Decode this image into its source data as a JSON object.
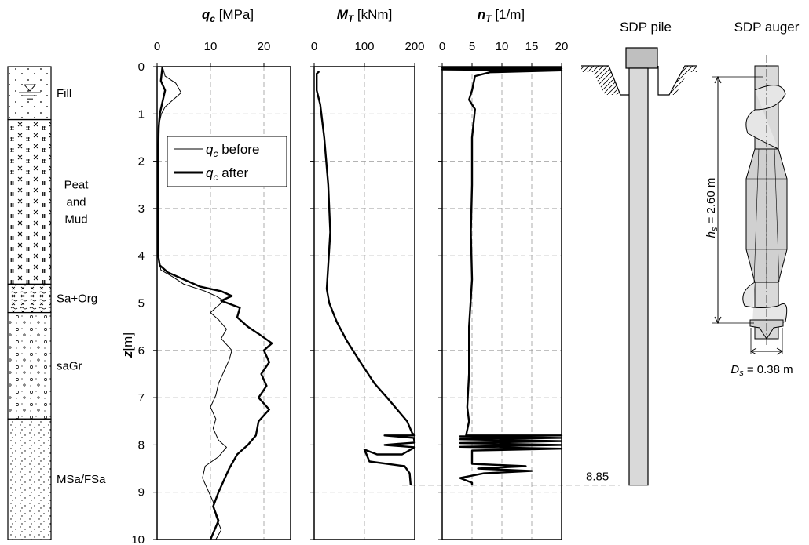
{
  "depth_axis": {
    "label_var": "z",
    "label_unit": "[m]",
    "range": [
      0,
      10
    ],
    "ticks": [
      "0",
      "1",
      "2",
      "3",
      "4",
      "5",
      "6",
      "7",
      "8",
      "9",
      "10"
    ]
  },
  "soil_profile": [
    {
      "name": "Fill",
      "top": 0,
      "bottom": 1.12,
      "pattern": "fill"
    },
    {
      "name": "Peat and Mud",
      "lines": [
        "Peat",
        "and",
        "Mud"
      ],
      "top": 1.12,
      "bottom": 4.6,
      "pattern": "peat"
    },
    {
      "name": "Sa+Org",
      "top": 4.6,
      "bottom": 5.2,
      "pattern": "saorg"
    },
    {
      "name": "saGr",
      "top": 5.2,
      "bottom": 7.45,
      "pattern": "gravel"
    },
    {
      "name": "MSa/FSa",
      "top": 7.45,
      "bottom": 10,
      "pattern": "sand"
    }
  ],
  "headers": {
    "qc": {
      "var": "q",
      "sub": "c",
      "unit": " [MPa]"
    },
    "mt": {
      "var": "M",
      "sub": "T",
      "unit": " [kNm]"
    },
    "nt": {
      "var": "n",
      "sub": "T",
      "unit": " [1/m]"
    },
    "pile": "SDP pile",
    "auger": "SDP auger"
  },
  "pile_annotation": {
    "depth_label": "8.85",
    "depth": 8.85
  },
  "auger_annotation": {
    "hs_var": "h",
    "hs_sub": "s",
    "hs_value": " = 2.60 m",
    "ds_var": "D",
    "ds_sub": "s",
    "ds_value": " = 0.38 m"
  },
  "colors": {
    "line": "#000000",
    "grid": "#9a9a9a",
    "pile_fill": "#d9d9d9",
    "cap_fill": "#bfbfbf"
  },
  "chart_data": [
    {
      "type": "line",
      "id": "qc",
      "title": "q_c [MPa]",
      "xlabel": "q_c [MPa]",
      "ylabel": "z [m]",
      "xlim": [
        0,
        25
      ],
      "ylim": [
        0,
        10
      ],
      "y_inverted": true,
      "x_ticks": [
        "0",
        "10",
        "20"
      ],
      "grid": true,
      "legend_position": "upper-middle",
      "series": [
        {
          "name": "q_c before",
          "style": "thin",
          "points": [
            [
              1.0,
              0.0
            ],
            [
              1.5,
              0.2
            ],
            [
              3.5,
              0.35
            ],
            [
              4.5,
              0.55
            ],
            [
              3.0,
              0.7
            ],
            [
              1.5,
              0.85
            ],
            [
              0.8,
              1.0
            ],
            [
              0.4,
              1.2
            ],
            [
              0.3,
              2.0
            ],
            [
              0.3,
              3.0
            ],
            [
              0.3,
              4.0
            ],
            [
              0.7,
              4.3
            ],
            [
              3.0,
              4.45
            ],
            [
              5.0,
              4.6
            ],
            [
              9.0,
              4.75
            ],
            [
              11.0,
              4.85
            ],
            [
              12.5,
              4.95
            ],
            [
              11.0,
              5.1
            ],
            [
              10.0,
              5.2
            ],
            [
              11.5,
              5.35
            ],
            [
              13.0,
              5.55
            ],
            [
              12.0,
              5.75
            ],
            [
              14.0,
              6.0
            ],
            [
              13.5,
              6.2
            ],
            [
              12.5,
              6.45
            ],
            [
              11.5,
              6.7
            ],
            [
              11.0,
              6.95
            ],
            [
              10.0,
              7.2
            ],
            [
              11.0,
              7.45
            ],
            [
              10.5,
              7.65
            ],
            [
              11.5,
              7.9
            ],
            [
              13.0,
              8.05
            ],
            [
              11.5,
              8.25
            ],
            [
              9.0,
              8.45
            ],
            [
              8.5,
              8.7
            ],
            [
              9.5,
              8.95
            ],
            [
              10.5,
              9.2
            ],
            [
              11.0,
              9.5
            ],
            [
              12.0,
              9.8
            ],
            [
              11.0,
              10.0
            ]
          ]
        },
        {
          "name": "q_c after",
          "style": "thick",
          "points": [
            [
              1.0,
              0.0
            ],
            [
              0.7,
              0.3
            ],
            [
              1.5,
              0.5
            ],
            [
              1.0,
              0.75
            ],
            [
              0.5,
              1.0
            ],
            [
              0.3,
              1.3
            ],
            [
              0.2,
              2.0
            ],
            [
              0.2,
              3.0
            ],
            [
              0.2,
              4.0
            ],
            [
              0.5,
              4.2
            ],
            [
              2.0,
              4.35
            ],
            [
              5.0,
              4.5
            ],
            [
              8.0,
              4.65
            ],
            [
              12.0,
              4.75
            ],
            [
              14.0,
              4.85
            ],
            [
              12.0,
              4.95
            ],
            [
              15.5,
              5.1
            ],
            [
              15.0,
              5.3
            ],
            [
              17.0,
              5.5
            ],
            [
              19.0,
              5.65
            ],
            [
              21.5,
              5.85
            ],
            [
              20.0,
              6.0
            ],
            [
              21.0,
              6.25
            ],
            [
              19.5,
              6.5
            ],
            [
              20.5,
              6.75
            ],
            [
              19.0,
              7.0
            ],
            [
              21.0,
              7.25
            ],
            [
              19.0,
              7.5
            ],
            [
              18.5,
              7.8
            ],
            [
              17.0,
              8.0
            ],
            [
              15.0,
              8.2
            ],
            [
              13.5,
              8.5
            ],
            [
              12.5,
              8.75
            ],
            [
              11.5,
              9.0
            ],
            [
              10.5,
              9.3
            ],
            [
              11.5,
              9.6
            ],
            [
              10.0,
              10.0
            ]
          ]
        }
      ]
    },
    {
      "type": "line",
      "id": "mt",
      "title": "M_T [kNm]",
      "xlabel": "M_T [kNm]",
      "xlim": [
        0,
        200
      ],
      "ylim": [
        0,
        10
      ],
      "y_inverted": true,
      "x_ticks": [
        "0",
        "100",
        "200"
      ],
      "grid": true,
      "series": [
        {
          "name": "M_T",
          "style": "thick",
          "points": [
            [
              10,
              0.1
            ],
            [
              5,
              0.15
            ],
            [
              5,
              0.5
            ],
            [
              12,
              0.8
            ],
            [
              20,
              1.5
            ],
            [
              28,
              2.5
            ],
            [
              32,
              3.5
            ],
            [
              28,
              4.2
            ],
            [
              25,
              4.7
            ],
            [
              30,
              5.0
            ],
            [
              45,
              5.4
            ],
            [
              65,
              5.8
            ],
            [
              95,
              6.3
            ],
            [
              120,
              6.7
            ],
            [
              145,
              7.0
            ],
            [
              165,
              7.25
            ],
            [
              185,
              7.5
            ],
            [
              195,
              7.75
            ],
            [
              200,
              7.8
            ],
            [
              140,
              7.8
            ],
            [
              198,
              7.85
            ],
            [
              200,
              7.95
            ],
            [
              140,
              8.0
            ],
            [
              200,
              8.05
            ],
            [
              175,
              8.2
            ],
            [
              125,
              8.2
            ],
            [
              100,
              8.1
            ],
            [
              110,
              8.35
            ],
            [
              180,
              8.45
            ],
            [
              190,
              8.6
            ],
            [
              192,
              8.85
            ]
          ]
        }
      ]
    },
    {
      "type": "line",
      "id": "nt",
      "title": "n_T [1/m]",
      "xlabel": "n_T [1/m]",
      "xlim": [
        0,
        20
      ],
      "ylim": [
        0,
        10
      ],
      "y_inverted": true,
      "x_ticks": [
        "0",
        "5",
        "10",
        "15",
        "20"
      ],
      "grid": true,
      "series": [
        {
          "name": "n_T",
          "style": "thick",
          "points": [
            [
              20,
              0.02
            ],
            [
              0,
              0.02
            ],
            [
              20,
              0.04
            ],
            [
              0,
              0.06
            ],
            [
              20,
              0.08
            ],
            [
              8,
              0.12
            ],
            [
              5.5,
              0.2
            ],
            [
              5,
              0.5
            ],
            [
              4.5,
              0.7
            ],
            [
              5.5,
              0.9
            ],
            [
              5,
              1.5
            ],
            [
              5,
              2.5
            ],
            [
              4.8,
              3.5
            ],
            [
              5,
              4.5
            ],
            [
              4.5,
              5.5
            ],
            [
              4.5,
              6.5
            ],
            [
              4.2,
              7.2
            ],
            [
              4.5,
              7.5
            ],
            [
              4.0,
              7.8
            ],
            [
              20,
              7.8
            ],
            [
              3,
              7.82
            ],
            [
              20,
              7.85
            ],
            [
              3,
              7.88
            ],
            [
              20,
              7.92
            ],
            [
              3,
              7.96
            ],
            [
              20,
              8.0
            ],
            [
              3,
              8.04
            ],
            [
              20,
              8.08
            ],
            [
              5,
              8.12
            ],
            [
              5,
              8.4
            ],
            [
              14,
              8.45
            ],
            [
              6,
              8.5
            ],
            [
              15,
              8.55
            ],
            [
              7,
              8.6
            ],
            [
              3,
              8.7
            ],
            [
              5,
              8.8
            ],
            [
              5,
              8.85
            ]
          ]
        }
      ]
    }
  ]
}
